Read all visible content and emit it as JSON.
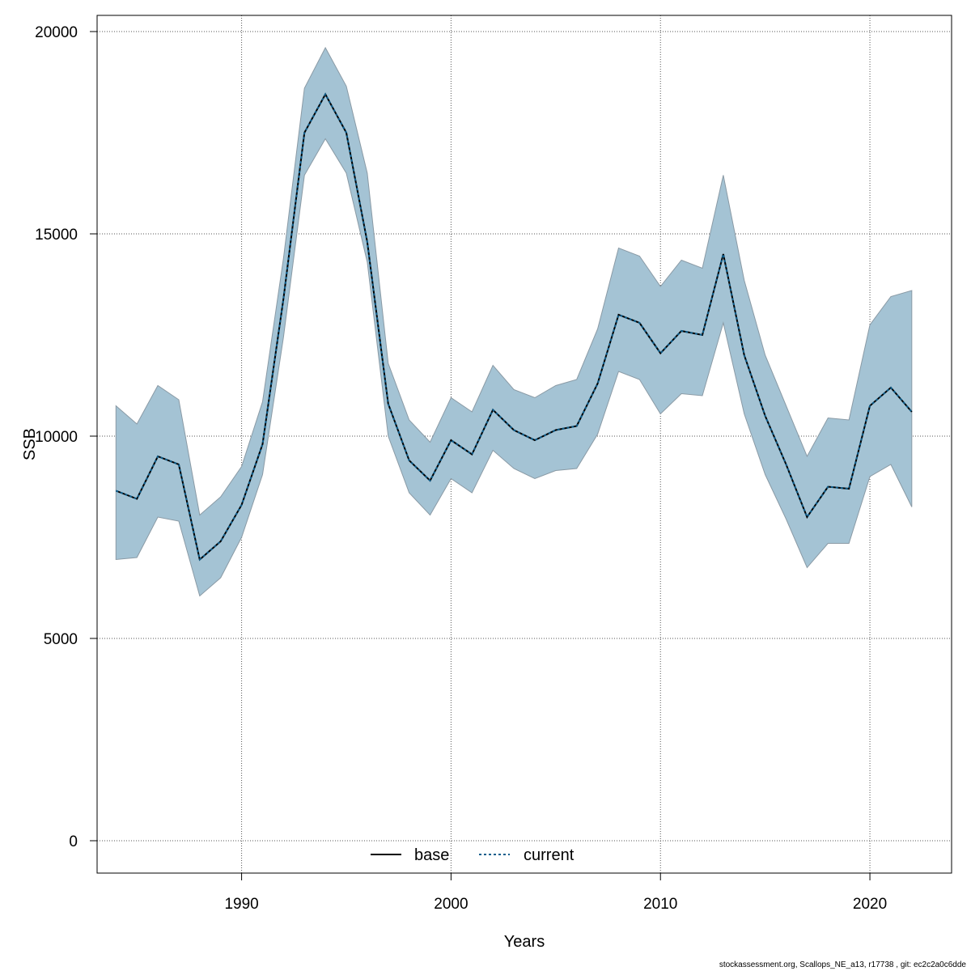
{
  "chart_data": {
    "type": "line",
    "title": "",
    "xlabel": "Years",
    "ylabel": "SSB",
    "xlim": [
      1983.1,
      2023.9
    ],
    "ylim": [
      -800,
      20400
    ],
    "x_ticks": [
      1990,
      2000,
      2010,
      2020
    ],
    "y_ticks": [
      0,
      5000,
      10000,
      15000,
      20000
    ],
    "grid": true,
    "legend_position": "bottom-center",
    "x": [
      1984,
      1985,
      1986,
      1987,
      1988,
      1989,
      1990,
      1991,
      1992,
      1993,
      1994,
      1995,
      1996,
      1997,
      1998,
      1999,
      2000,
      2001,
      2002,
      2003,
      2004,
      2005,
      2006,
      2007,
      2008,
      2009,
      2010,
      2011,
      2012,
      2013,
      2014,
      2015,
      2016,
      2017,
      2018,
      2019,
      2020,
      2021,
      2022
    ],
    "series": [
      {
        "name": "base",
        "style": "solid",
        "color": "#000000",
        "values": [
          8650,
          8450,
          9500,
          9300,
          6950,
          7400,
          8300,
          9800,
          13400,
          17500,
          18450,
          17500,
          14800,
          10800,
          9400,
          8900,
          9900,
          9550,
          10650,
          10150,
          9900,
          10150,
          10250,
          11300,
          13000,
          12800,
          12050,
          12600,
          12500,
          14500,
          12000,
          10500,
          9300,
          8000,
          8750,
          8700,
          10750,
          11200,
          10600
        ]
      },
      {
        "name": "current",
        "style": "dotted",
        "color": "#0e5e8c",
        "values": [
          8650,
          8450,
          9500,
          9300,
          6950,
          7400,
          8300,
          9800,
          13400,
          17500,
          18450,
          17500,
          14800,
          10800,
          9400,
          8900,
          9900,
          9550,
          10650,
          10150,
          9900,
          10150,
          10250,
          11300,
          13000,
          12800,
          12050,
          12600,
          12500,
          14500,
          12000,
          10500,
          9300,
          8000,
          8750,
          8700,
          10750,
          11200,
          10600
        ]
      }
    ],
    "confidence_band": {
      "color": "#a4c3d4",
      "edge_color": "#8a9aa5",
      "lower": [
        6950,
        7000,
        8000,
        7900,
        6050,
        6500,
        7500,
        9050,
        12450,
        16450,
        17350,
        16500,
        14300,
        10000,
        8600,
        8050,
        8950,
        8600,
        9650,
        9200,
        8950,
        9150,
        9200,
        10050,
        11600,
        11400,
        10550,
        11050,
        11000,
        12800,
        10550,
        9050,
        7950,
        6750,
        7350,
        7350,
        9000,
        9300,
        8250
      ],
      "upper": [
        10750,
        10300,
        11250,
        10900,
        8050,
        8500,
        9250,
        10850,
        14400,
        18600,
        19600,
        18650,
        16500,
        11800,
        10400,
        9850,
        10950,
        10600,
        11750,
        11150,
        10950,
        11250,
        11400,
        12650,
        14650,
        14450,
        13700,
        14350,
        14150,
        16450,
        13850,
        12000,
        10750,
        9500,
        10450,
        10400,
        12750,
        13450,
        13600
      ]
    }
  },
  "footer_text": "stockassessment.org, Scallops_NE_a13, r17738 , git: ec2c2a0c6dde",
  "colors": {
    "band_fill": "#a4c3d4",
    "current_line": "#0e5e8c",
    "grid": "#555555"
  }
}
